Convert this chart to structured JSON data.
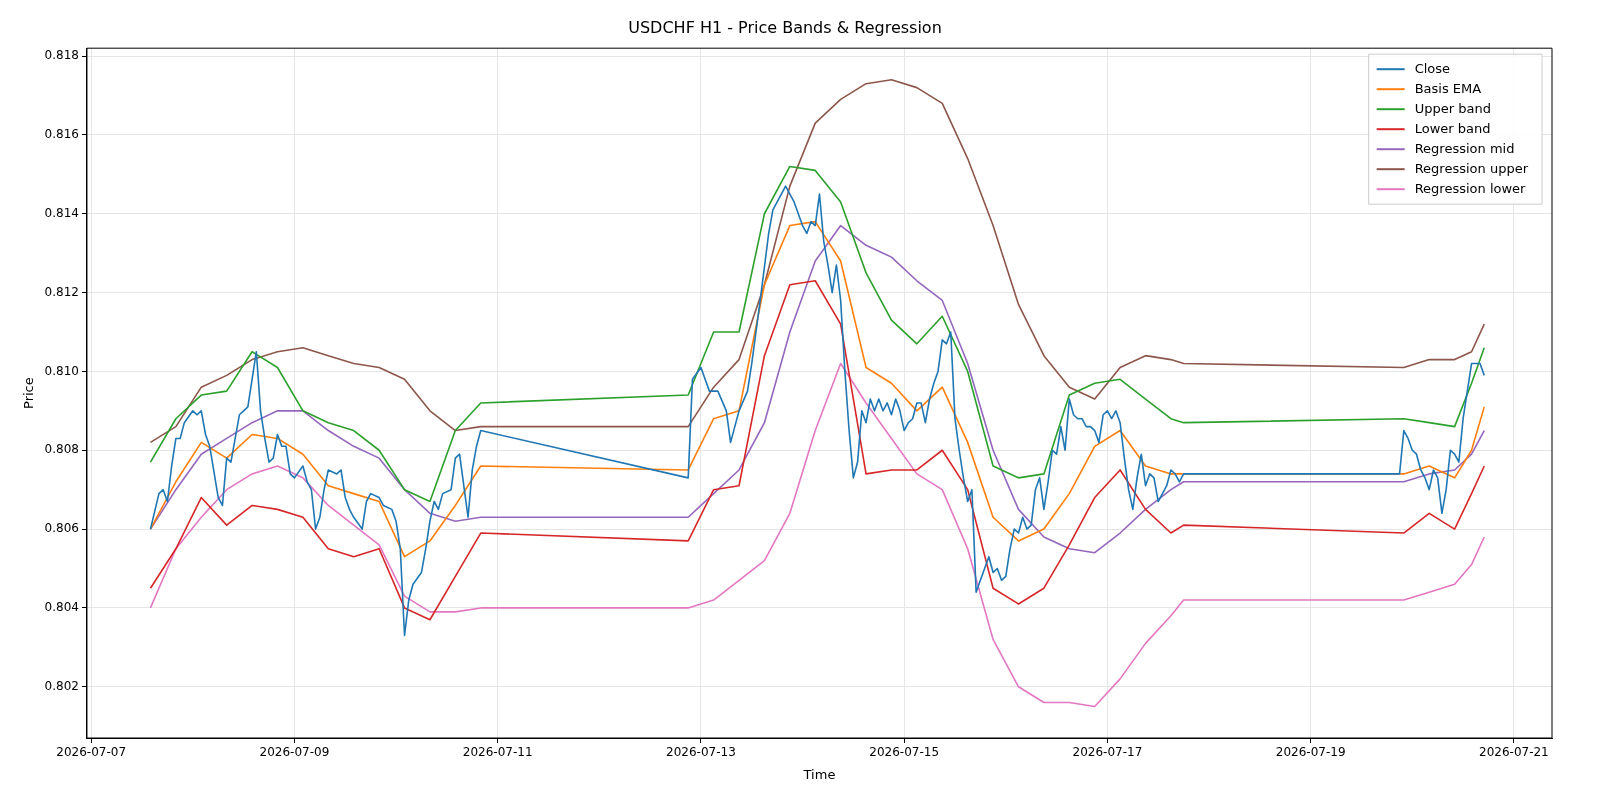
{
  "chart_data": {
    "type": "line",
    "title": "USDCHF H1 - Price Bands & Regression",
    "xlabel": "Time",
    "ylabel": "Price",
    "legend": "top right",
    "grid": true,
    "marker": "none",
    "xlim": [
      "2026-07-06T23:00",
      "2026-07-21T09:00"
    ],
    "xticks": [
      "2026-07-07",
      "2026-07-09",
      "2026-07-11",
      "2026-07-13",
      "2026-07-15",
      "2026-07-17",
      "2026-07-19",
      "2026-07-21"
    ],
    "ylim": [
      0.8007,
      0.8182
    ],
    "yticks": [
      0.802,
      0.804,
      0.806,
      0.808,
      {
        "value": 0.81,
        "label": "0.810"
      },
      0.812,
      0.814,
      0.816,
      0.818
    ],
    "x": [
      "2026-07-07T14:00",
      "2026-07-07T20:00",
      "2026-07-08T02:00",
      "2026-07-08T08:00",
      "2026-07-08T14:00",
      "2026-07-08T20:00",
      "2026-07-09T02:00",
      "2026-07-09T08:00",
      "2026-07-09T14:00",
      "2026-07-09T20:00",
      "2026-07-10T02:00",
      "2026-07-10T08:00",
      "2026-07-10T14:00",
      "2026-07-10T20:00",
      "2026-07-12T21:00",
      "2026-07-13T03:00",
      "2026-07-13T09:00",
      "2026-07-13T15:00",
      "2026-07-13T21:00",
      "2026-07-14T03:00",
      "2026-07-14T09:00",
      "2026-07-14T15:00",
      "2026-07-14T21:00",
      "2026-07-15T03:00",
      "2026-07-15T09:00",
      "2026-07-15T15:00",
      "2026-07-15T21:00",
      "2026-07-16T03:00",
      "2026-07-16T09:00",
      "2026-07-16T15:00",
      "2026-07-16T21:00",
      "2026-07-17T03:00",
      "2026-07-17T09:00",
      "2026-07-17T15:00",
      "2026-07-17T18:00",
      "2026-07-19T22:00",
      "2026-07-20T04:00",
      "2026-07-20T10:00",
      "2026-07-20T14:00",
      "2026-07-20T17:00"
    ],
    "series": [
      {
        "name": "Close",
        "color": "#1f77b4",
        "x": [
          "2026-07-07T14:00",
          "2026-07-07T16:00",
          "2026-07-07T17:00",
          "2026-07-07T18:00",
          "2026-07-07T19:00",
          "2026-07-07T20:00",
          "2026-07-07T21:00",
          "2026-07-07T22:00",
          "2026-07-08T00:00",
          "2026-07-08T01:00",
          "2026-07-08T02:00",
          "2026-07-08T03:00",
          "2026-07-08T04:00",
          "2026-07-08T06:00",
          "2026-07-08T07:00",
          "2026-07-08T08:00",
          "2026-07-08T09:00",
          "2026-07-08T11:00",
          "2026-07-08T12:00",
          "2026-07-08T13:00",
          "2026-07-08T15:00",
          "2026-07-08T16:00",
          "2026-07-08T17:00",
          "2026-07-08T18:00",
          "2026-07-08T19:00",
          "2026-07-08T20:00",
          "2026-07-08T21:00",
          "2026-07-08T22:00",
          "2026-07-08T23:00",
          "2026-07-09T00:00",
          "2026-07-09T02:00",
          "2026-07-09T03:00",
          "2026-07-09T04:00",
          "2026-07-09T05:00",
          "2026-07-09T06:00",
          "2026-07-09T07:00",
          "2026-07-09T08:00",
          "2026-07-09T10:00",
          "2026-07-09T11:00",
          "2026-07-09T12:00",
          "2026-07-09T13:00",
          "2026-07-09T14:00",
          "2026-07-09T16:00",
          "2026-07-09T17:00",
          "2026-07-09T18:00",
          "2026-07-09T20:00",
          "2026-07-09T21:00",
          "2026-07-09T23:00",
          "2026-07-10T00:00",
          "2026-07-10T01:00",
          "2026-07-10T02:00",
          "2026-07-10T03:00",
          "2026-07-10T04:00",
          "2026-07-10T06:00",
          "2026-07-10T07:00",
          "2026-07-10T08:00",
          "2026-07-10T09:00",
          "2026-07-10T10:00",
          "2026-07-10T11:00",
          "2026-07-10T13:00",
          "2026-07-10T14:00",
          "2026-07-10T15:00",
          "2026-07-10T17:00",
          "2026-07-10T18:00",
          "2026-07-10T19:00",
          "2026-07-10T20:00",
          "2026-07-12T21:00",
          "2026-07-12T22:00",
          "2026-07-13T00:00",
          "2026-07-13T02:00",
          "2026-07-13T04:00",
          "2026-07-13T06:00",
          "2026-07-13T07:00",
          "2026-07-13T09:00",
          "2026-07-13T11:00",
          "2026-07-13T12:00",
          "2026-07-13T14:00",
          "2026-07-13T16:00",
          "2026-07-13T17:00",
          "2026-07-13T19:00",
          "2026-07-13T20:00",
          "2026-07-13T21:00",
          "2026-07-13T22:00",
          "2026-07-14T00:00",
          "2026-07-14T01:00",
          "2026-07-14T02:00",
          "2026-07-14T03:00",
          "2026-07-14T04:00",
          "2026-07-14T05:00",
          "2026-07-14T06:00",
          "2026-07-14T07:00",
          "2026-07-14T08:00",
          "2026-07-14T09:00",
          "2026-07-14T10:00",
          "2026-07-14T11:00",
          "2026-07-14T12:00",
          "2026-07-14T13:00",
          "2026-07-14T14:00",
          "2026-07-14T15:00",
          "2026-07-14T16:00",
          "2026-07-14T17:00",
          "2026-07-14T18:00",
          "2026-07-14T19:00",
          "2026-07-14T20:00",
          "2026-07-14T21:00",
          "2026-07-14T22:00",
          "2026-07-14T23:00",
          "2026-07-15T00:00",
          "2026-07-15T01:00",
          "2026-07-15T02:00",
          "2026-07-15T03:00",
          "2026-07-15T04:00",
          "2026-07-15T05:00",
          "2026-07-15T06:00",
          "2026-07-15T07:00",
          "2026-07-15T08:00",
          "2026-07-15T09:00",
          "2026-07-15T10:00",
          "2026-07-15T11:00",
          "2026-07-15T12:00",
          "2026-07-15T13:00",
          "2026-07-15T14:00",
          "2026-07-15T15:00",
          "2026-07-15T16:00",
          "2026-07-15T17:00",
          "2026-07-15T18:00",
          "2026-07-15T19:00",
          "2026-07-15T20:00",
          "2026-07-15T21:00",
          "2026-07-15T22:00",
          "2026-07-15T23:00",
          "2026-07-16T00:00",
          "2026-07-16T01:00",
          "2026-07-16T02:00",
          "2026-07-16T03:00",
          "2026-07-16T04:00",
          "2026-07-16T05:00",
          "2026-07-16T06:00",
          "2026-07-16T07:00",
          "2026-07-16T08:00",
          "2026-07-16T09:00",
          "2026-07-16T10:00",
          "2026-07-16T11:00",
          "2026-07-16T12:00",
          "2026-07-16T13:00",
          "2026-07-16T14:00",
          "2026-07-16T15:00",
          "2026-07-16T16:00",
          "2026-07-16T17:00",
          "2026-07-16T18:00",
          "2026-07-16T19:00",
          "2026-07-16T20:00",
          "2026-07-16T21:00",
          "2026-07-16T22:00",
          "2026-07-16T23:00",
          "2026-07-17T00:00",
          "2026-07-17T01:00",
          "2026-07-17T02:00",
          "2026-07-17T03:00",
          "2026-07-17T04:00",
          "2026-07-17T05:00",
          "2026-07-17T06:00",
          "2026-07-17T07:00",
          "2026-07-17T08:00",
          "2026-07-17T09:00",
          "2026-07-17T10:00",
          "2026-07-17T11:00",
          "2026-07-17T12:00",
          "2026-07-17T13:00",
          "2026-07-17T14:00",
          "2026-07-17T15:00",
          "2026-07-17T16:00",
          "2026-07-17T17:00",
          "2026-07-17T18:00",
          "2026-07-19T21:00",
          "2026-07-19T22:00",
          "2026-07-19T23:00",
          "2026-07-20T00:00",
          "2026-07-20T01:00",
          "2026-07-20T02:00",
          "2026-07-20T03:00",
          "2026-07-20T04:00",
          "2026-07-20T05:00",
          "2026-07-20T06:00",
          "2026-07-20T07:00",
          "2026-07-20T08:00",
          "2026-07-20T09:00",
          "2026-07-20T10:00",
          "2026-07-20T11:00",
          "2026-07-20T12:00",
          "2026-07-20T13:00",
          "2026-07-20T14:00",
          "2026-07-20T15:00",
          "2026-07-20T16:00",
          "2026-07-20T17:00"
        ],
        "values": [
          0.806,
          0.8069,
          0.807,
          0.8067,
          0.8076,
          0.8083,
          0.8083,
          0.8087,
          0.809,
          0.8089,
          0.809,
          0.8084,
          0.8081,
          0.8068,
          0.8066,
          0.8078,
          0.8077,
          0.8089,
          0.809,
          0.8091,
          0.8105,
          0.809,
          0.8083,
          0.8077,
          0.8078,
          0.8084,
          0.8081,
          0.8081,
          0.8074,
          0.8073,
          0.8076,
          0.8072,
          0.807,
          0.806,
          0.8063,
          0.807,
          0.8075,
          0.8074,
          0.8075,
          0.8068,
          0.8065,
          0.8063,
          0.806,
          0.8067,
          0.8069,
          0.8068,
          0.8066,
          0.8065,
          0.8062,
          0.8055,
          0.8033,
          0.8042,
          0.8046,
          0.8049,
          0.8055,
          0.8062,
          0.8067,
          0.8065,
          0.8069,
          0.807,
          0.8078,
          0.8079,
          0.8063,
          0.8075,
          0.8081,
          0.8085,
          0.8073,
          0.8098,
          0.8101,
          0.8095,
          0.8095,
          0.809,
          0.8082,
          0.809,
          0.8095,
          0.8102,
          0.8118,
          0.8135,
          0.8141,
          0.8145,
          0.8147,
          0.8145,
          0.8143,
          0.8137,
          0.8135,
          0.8138,
          0.8137,
          0.8145,
          0.8133,
          0.8127,
          0.812,
          0.8127,
          0.8118,
          0.81,
          0.8085,
          0.8073,
          0.8077,
          0.809,
          0.8087,
          0.8093,
          0.809,
          0.8093,
          0.809,
          0.8092,
          0.8089,
          0.8093,
          0.809,
          0.8085,
          0.8087,
          0.8088,
          0.8092,
          0.8092,
          0.8087,
          0.8093,
          0.8097,
          0.81,
          0.8108,
          0.8107,
          0.811,
          0.8088,
          0.808,
          0.8073,
          0.8067,
          0.807,
          0.8044,
          0.8047,
          0.805,
          0.8053,
          0.8049,
          0.805,
          0.8047,
          0.8048,
          0.8055,
          0.806,
          0.8059,
          0.8063,
          0.806,
          0.8061,
          0.807,
          0.8073,
          0.8065,
          0.8072,
          0.808,
          0.8079,
          0.8086,
          0.808,
          0.8093,
          0.8089,
          0.8088,
          0.8088,
          0.8086,
          0.8086,
          0.8085,
          0.8082,
          0.8089,
          0.809,
          0.8088,
          0.809,
          0.8087,
          0.8078,
          0.807,
          0.8065,
          0.8073,
          0.8079,
          0.8071,
          0.8074,
          0.8073,
          0.8067,
          0.8069,
          0.8071,
          0.8075,
          0.8074,
          0.8072,
          0.8074,
          0.8074,
          0.8085,
          0.8083,
          0.808,
          0.8079,
          0.8075,
          0.8073,
          0.807,
          0.8075,
          0.8073,
          0.8064,
          0.807,
          0.808,
          0.8079,
          0.8077,
          0.8088,
          0.8095,
          0.8102,
          0.8102,
          0.8102,
          0.8099
        ]
      },
      {
        "name": "Basis EMA",
        "color": "#ff7f0e",
        "values": [
          0.806,
          0.8072,
          0.8082,
          0.8078,
          0.8084,
          0.8083,
          0.8079,
          0.8071,
          0.8069,
          0.8067,
          0.8053,
          0.8057,
          0.8066,
          0.8076,
          0.8075,
          0.8088,
          0.809,
          0.8122,
          0.8137,
          0.8138,
          0.8128,
          0.8101,
          0.8097,
          0.809,
          0.8096,
          0.8082,
          0.8063,
          0.8057,
          0.806,
          0.8069,
          0.8081,
          0.8085,
          0.8076,
          0.8074,
          0.8074,
          0.8074,
          0.8076,
          0.8073,
          0.808,
          0.8091
        ]
      },
      {
        "name": "Upper band",
        "color": "#2ca02c",
        "values": [
          0.8077,
          0.8088,
          0.8094,
          0.8095,
          0.8105,
          0.8101,
          0.809,
          0.8087,
          0.8085,
          0.808,
          0.807,
          0.8067,
          0.8085,
          0.8092,
          0.8094,
          0.811,
          0.811,
          0.814,
          0.8152,
          0.8151,
          0.8143,
          0.8125,
          0.8113,
          0.8107,
          0.8114,
          0.81,
          0.8076,
          0.8073,
          0.8074,
          0.8094,
          0.8097,
          0.8098,
          0.8093,
          0.8088,
          0.8087,
          0.8088,
          0.8087,
          0.8086,
          0.8097,
          0.8106
        ]
      },
      {
        "name": "Lower band",
        "color": "#d62728",
        "values": [
          0.8045,
          0.8055,
          0.8068,
          0.8061,
          0.8066,
          0.8065,
          0.8063,
          0.8055,
          0.8053,
          0.8055,
          0.804,
          0.8037,
          0.8048,
          0.8059,
          0.8057,
          0.807,
          0.8071,
          0.8104,
          0.8122,
          0.8123,
          0.8112,
          0.8074,
          0.8075,
          0.8075,
          0.808,
          0.807,
          0.8045,
          0.8041,
          0.8045,
          0.8056,
          0.8068,
          0.8075,
          0.8065,
          0.8059,
          0.8061,
          0.8059,
          0.8064,
          0.806,
          0.8069,
          0.8076
        ]
      },
      {
        "name": "Regression mid",
        "color": "#9467bd",
        "values": [
          0.806,
          0.807,
          0.8079,
          0.8083,
          0.8087,
          0.809,
          0.809,
          0.8085,
          0.8081,
          0.8078,
          0.807,
          0.8064,
          0.8062,
          0.8063,
          0.8063,
          0.8069,
          0.8075,
          0.8087,
          0.811,
          0.8128,
          0.8137,
          0.8132,
          0.8129,
          0.8123,
          0.8118,
          0.8102,
          0.808,
          0.8065,
          0.8058,
          0.8055,
          0.8054,
          0.8059,
          0.8065,
          0.807,
          0.8072,
          0.8072,
          0.8074,
          0.8075,
          0.8079,
          0.8085
        ]
      },
      {
        "name": "Regression upper",
        "color": "#8c564b",
        "values": [
          0.8082,
          0.8086,
          0.8096,
          0.8099,
          0.8103,
          0.8105,
          0.8106,
          0.8104,
          0.8102,
          0.8101,
          0.8098,
          0.809,
          0.8085,
          0.8086,
          0.8086,
          0.8096,
          0.8103,
          0.8122,
          0.8147,
          0.8163,
          0.8169,
          0.8173,
          0.8174,
          0.8172,
          0.8168,
          0.8154,
          0.8137,
          0.8117,
          0.8104,
          0.8096,
          0.8093,
          0.8101,
          0.8104,
          0.8103,
          0.8102,
          0.8101,
          0.8103,
          0.8103,
          0.8105,
          0.8112
        ]
      },
      {
        "name": "Regression lower",
        "color": "#e377c2",
        "values": [
          0.804,
          0.8055,
          0.8063,
          0.807,
          0.8074,
          0.8076,
          0.8073,
          0.8066,
          0.8061,
          0.8056,
          0.8043,
          0.8039,
          0.8039,
          0.804,
          0.804,
          0.8042,
          0.8047,
          0.8052,
          0.8064,
          0.8085,
          0.8102,
          0.8092,
          0.8083,
          0.8074,
          0.807,
          0.8055,
          0.8032,
          0.802,
          0.8016,
          0.8016,
          0.8015,
          0.8022,
          0.8031,
          0.8038,
          0.8042,
          0.8042,
          0.8044,
          0.8046,
          0.8051,
          0.8058
        ]
      }
    ]
  }
}
